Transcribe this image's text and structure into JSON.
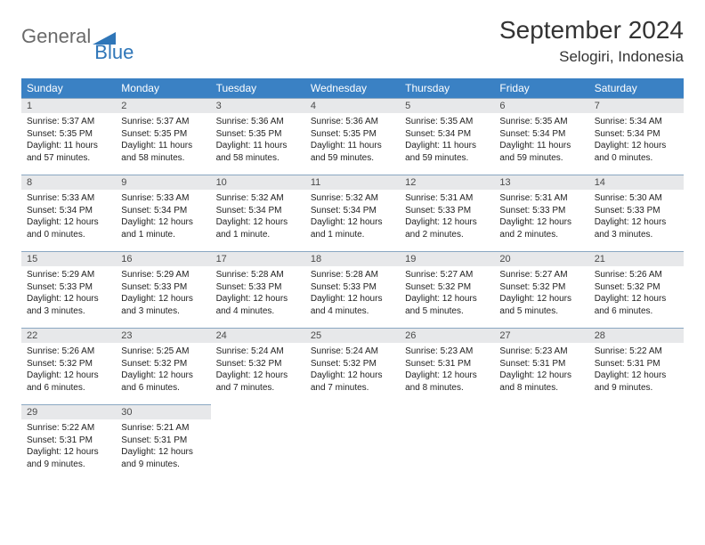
{
  "brand": {
    "part1": "General",
    "part2": "Blue"
  },
  "title": "September 2024",
  "location": "Selogiri, Indonesia",
  "colors": {
    "header_bg": "#3a81c4",
    "header_text": "#ffffff",
    "daynum_bg": "#e7e8ea",
    "daynum_text": "#4a4a4a",
    "cell_border": "#8aa7c2",
    "body_text": "#222222",
    "brand_blue": "#2f76b8",
    "brand_gray": "#6a6a6a"
  },
  "weekdays": [
    "Sunday",
    "Monday",
    "Tuesday",
    "Wednesday",
    "Thursday",
    "Friday",
    "Saturday"
  ],
  "days": [
    {
      "n": "1",
      "sr": "5:37 AM",
      "ss": "5:35 PM",
      "dl": "11 hours and 57 minutes."
    },
    {
      "n": "2",
      "sr": "5:37 AM",
      "ss": "5:35 PM",
      "dl": "11 hours and 58 minutes."
    },
    {
      "n": "3",
      "sr": "5:36 AM",
      "ss": "5:35 PM",
      "dl": "11 hours and 58 minutes."
    },
    {
      "n": "4",
      "sr": "5:36 AM",
      "ss": "5:35 PM",
      "dl": "11 hours and 59 minutes."
    },
    {
      "n": "5",
      "sr": "5:35 AM",
      "ss": "5:34 PM",
      "dl": "11 hours and 59 minutes."
    },
    {
      "n": "6",
      "sr": "5:35 AM",
      "ss": "5:34 PM",
      "dl": "11 hours and 59 minutes."
    },
    {
      "n": "7",
      "sr": "5:34 AM",
      "ss": "5:34 PM",
      "dl": "12 hours and 0 minutes."
    },
    {
      "n": "8",
      "sr": "5:33 AM",
      "ss": "5:34 PM",
      "dl": "12 hours and 0 minutes."
    },
    {
      "n": "9",
      "sr": "5:33 AM",
      "ss": "5:34 PM",
      "dl": "12 hours and 1 minute."
    },
    {
      "n": "10",
      "sr": "5:32 AM",
      "ss": "5:34 PM",
      "dl": "12 hours and 1 minute."
    },
    {
      "n": "11",
      "sr": "5:32 AM",
      "ss": "5:34 PM",
      "dl": "12 hours and 1 minute."
    },
    {
      "n": "12",
      "sr": "5:31 AM",
      "ss": "5:33 PM",
      "dl": "12 hours and 2 minutes."
    },
    {
      "n": "13",
      "sr": "5:31 AM",
      "ss": "5:33 PM",
      "dl": "12 hours and 2 minutes."
    },
    {
      "n": "14",
      "sr": "5:30 AM",
      "ss": "5:33 PM",
      "dl": "12 hours and 3 minutes."
    },
    {
      "n": "15",
      "sr": "5:29 AM",
      "ss": "5:33 PM",
      "dl": "12 hours and 3 minutes."
    },
    {
      "n": "16",
      "sr": "5:29 AM",
      "ss": "5:33 PM",
      "dl": "12 hours and 3 minutes."
    },
    {
      "n": "17",
      "sr": "5:28 AM",
      "ss": "5:33 PM",
      "dl": "12 hours and 4 minutes."
    },
    {
      "n": "18",
      "sr": "5:28 AM",
      "ss": "5:33 PM",
      "dl": "12 hours and 4 minutes."
    },
    {
      "n": "19",
      "sr": "5:27 AM",
      "ss": "5:32 PM",
      "dl": "12 hours and 5 minutes."
    },
    {
      "n": "20",
      "sr": "5:27 AM",
      "ss": "5:32 PM",
      "dl": "12 hours and 5 minutes."
    },
    {
      "n": "21",
      "sr": "5:26 AM",
      "ss": "5:32 PM",
      "dl": "12 hours and 6 minutes."
    },
    {
      "n": "22",
      "sr": "5:26 AM",
      "ss": "5:32 PM",
      "dl": "12 hours and 6 minutes."
    },
    {
      "n": "23",
      "sr": "5:25 AM",
      "ss": "5:32 PM",
      "dl": "12 hours and 6 minutes."
    },
    {
      "n": "24",
      "sr": "5:24 AM",
      "ss": "5:32 PM",
      "dl": "12 hours and 7 minutes."
    },
    {
      "n": "25",
      "sr": "5:24 AM",
      "ss": "5:32 PM",
      "dl": "12 hours and 7 minutes."
    },
    {
      "n": "26",
      "sr": "5:23 AM",
      "ss": "5:31 PM",
      "dl": "12 hours and 8 minutes."
    },
    {
      "n": "27",
      "sr": "5:23 AM",
      "ss": "5:31 PM",
      "dl": "12 hours and 8 minutes."
    },
    {
      "n": "28",
      "sr": "5:22 AM",
      "ss": "5:31 PM",
      "dl": "12 hours and 9 minutes."
    },
    {
      "n": "29",
      "sr": "5:22 AM",
      "ss": "5:31 PM",
      "dl": "12 hours and 9 minutes."
    },
    {
      "n": "30",
      "sr": "5:21 AM",
      "ss": "5:31 PM",
      "dl": "12 hours and 9 minutes."
    }
  ],
  "labels": {
    "sunrise": "Sunrise:",
    "sunset": "Sunset:",
    "daylight": "Daylight:"
  }
}
